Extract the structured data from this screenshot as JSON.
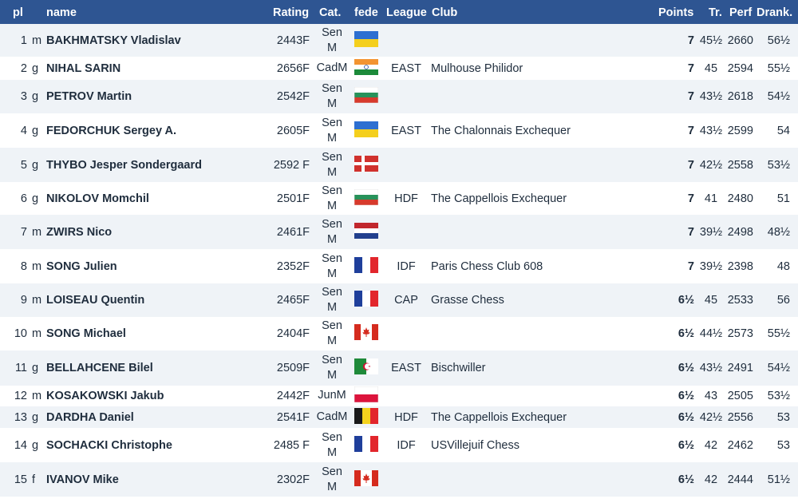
{
  "header": {
    "pl": "pl",
    "name": "name",
    "rating": "Rating",
    "cat": "Cat.",
    "fede": "fede",
    "league": "League",
    "club": "Club",
    "points": "Points",
    "tr": "Tr.",
    "perf": "Perf",
    "drank": "Drank."
  },
  "rows": [
    {
      "pl": "1",
      "title": "m",
      "name": "BAKHMATSKY Vladislav",
      "rating": "2443F",
      "cat": [
        "Sen",
        "M"
      ],
      "flag": "UKR",
      "league": "",
      "club": "",
      "points": "7",
      "tr": "45½",
      "perf": "2660",
      "drank": "56½"
    },
    {
      "pl": "2",
      "title": "g",
      "name": "NIHAL SARIN",
      "rating": "2656F",
      "cat": [
        "CadM"
      ],
      "flag": "IND",
      "league": "EAST",
      "club": "Mulhouse Philidor",
      "points": "7",
      "tr": "45",
      "perf": "2594",
      "drank": "55½"
    },
    {
      "pl": "3",
      "title": "g",
      "name": "PETROV Martin",
      "rating": "2542F",
      "cat": [
        "Sen",
        "M"
      ],
      "flag": "BUL",
      "league": "",
      "club": "",
      "points": "7",
      "tr": "43½",
      "perf": "2618",
      "drank": "54½"
    },
    {
      "pl": "4",
      "title": "g",
      "name": "FEDORCHUK Sergey A.",
      "rating": "2605F",
      "cat": [
        "Sen",
        "M"
      ],
      "flag": "UKR",
      "league": "EAST",
      "club": "The Chalonnais Exchequer",
      "points": "7",
      "tr": "43½",
      "perf": "2599",
      "drank": "54"
    },
    {
      "pl": "5",
      "title": "g",
      "name": "THYBO Jesper Sondergaard",
      "rating": "2592 F",
      "cat": [
        "Sen",
        "M"
      ],
      "flag": "DEN",
      "league": "",
      "club": "",
      "points": "7",
      "tr": "42½",
      "perf": "2558",
      "drank": "53½"
    },
    {
      "pl": "6",
      "title": "g",
      "name": "NIKOLOV Momchil",
      "rating": "2501F",
      "cat": [
        "Sen",
        "M"
      ],
      "flag": "BUL",
      "league": "HDF",
      "club": "The Cappellois Exchequer",
      "points": "7",
      "tr": "41",
      "perf": "2480",
      "drank": "51"
    },
    {
      "pl": "7",
      "title": "m",
      "name": "ZWIRS Nico",
      "rating": "2461F",
      "cat": [
        "Sen",
        "M"
      ],
      "flag": "NED",
      "league": "",
      "club": "",
      "points": "7",
      "tr": "39½",
      "perf": "2498",
      "drank": "48½"
    },
    {
      "pl": "8",
      "title": "m",
      "name": "SONG Julien",
      "rating": "2352F",
      "cat": [
        "Sen",
        "M"
      ],
      "flag": "FRA",
      "league": "IDF",
      "club": "Paris Chess Club 608",
      "points": "7",
      "tr": "39½",
      "perf": "2398",
      "drank": "48"
    },
    {
      "pl": "9",
      "title": "m",
      "name": "LOISEAU Quentin",
      "rating": "2465F",
      "cat": [
        "Sen",
        "M"
      ],
      "flag": "FRA",
      "league": "CAP",
      "club": "Grasse Chess",
      "points": "6½",
      "tr": "45",
      "perf": "2533",
      "drank": "56"
    },
    {
      "pl": "10",
      "title": "m",
      "name": "SONG Michael",
      "rating": "2404F",
      "cat": [
        "Sen",
        "M"
      ],
      "flag": "CAN",
      "league": "",
      "club": "",
      "points": "6½",
      "tr": "44½",
      "perf": "2573",
      "drank": "55½"
    },
    {
      "pl": "11",
      "title": "g",
      "name": "BELLAHCENE Bilel",
      "rating": "2509F",
      "cat": [
        "Sen",
        "M"
      ],
      "flag": "ALG",
      "league": "EAST",
      "club": "Bischwiller",
      "points": "6½",
      "tr": "43½",
      "perf": "2491",
      "drank": "54½"
    },
    {
      "pl": "12",
      "title": "m",
      "name": "KOSAKOWSKI Jakub",
      "rating": "2442F",
      "cat": [
        "JunM"
      ],
      "flag": "POL",
      "league": "",
      "club": "",
      "points": "6½",
      "tr": "43",
      "perf": "2505",
      "drank": "53½"
    },
    {
      "pl": "13",
      "title": "g",
      "name": "DARDHA Daniel",
      "rating": "2541F",
      "cat": [
        "CadM"
      ],
      "flag": "BEL",
      "league": "HDF",
      "club": "The Cappellois Exchequer",
      "points": "6½",
      "tr": "42½",
      "perf": "2556",
      "drank": "53"
    },
    {
      "pl": "14",
      "title": "g",
      "name": "SOCHACKI Christophe",
      "rating": "2485 F",
      "cat": [
        "Sen",
        "M"
      ],
      "flag": "FRA",
      "league": "IDF",
      "club": "USVillejuif Chess",
      "points": "6½",
      "tr": "42",
      "perf": "2462",
      "drank": "53"
    },
    {
      "pl": "15",
      "title": "f",
      "name": "IVANOV Mike",
      "rating": "2302F",
      "cat": [
        "Sen",
        "M"
      ],
      "flag": "CAN",
      "league": "",
      "club": "",
      "points": "6½",
      "tr": "42",
      "perf": "2444",
      "drank": "51½"
    }
  ],
  "flag_icons": {
    "UKR": "ukraine-flag-icon",
    "IND": "india-flag-icon",
    "BUL": "bulgaria-flag-icon",
    "DEN": "denmark-flag-icon",
    "NED": "netherlands-flag-icon",
    "FRA": "france-flag-icon",
    "CAN": "canada-flag-icon",
    "ALG": "algeria-flag-icon",
    "POL": "poland-flag-icon",
    "BEL": "belgium-flag-icon"
  },
  "colors": {
    "header_bg": "#2e5592",
    "row_alt_bg": "#eff3f7",
    "text": "#1f2d3d"
  }
}
